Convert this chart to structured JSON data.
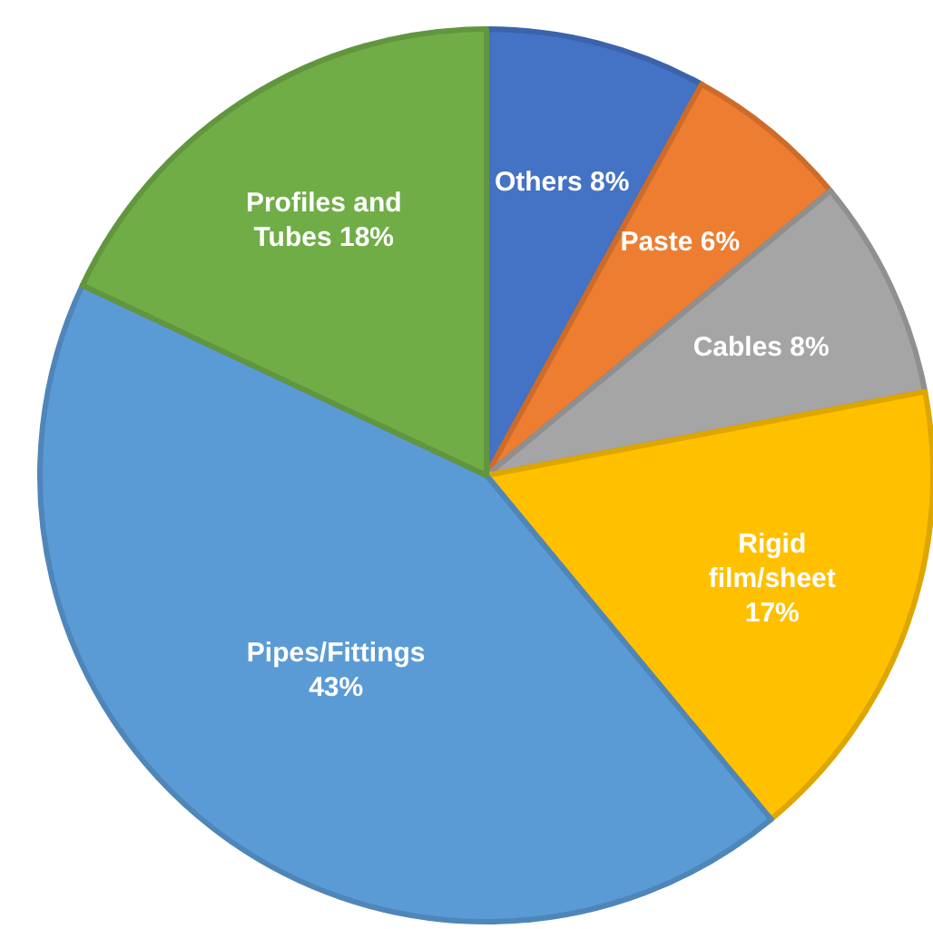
{
  "chart_data": {
    "type": "pie",
    "categories": [
      "Others",
      "Paste",
      "Cables",
      "Rigid film/sheet",
      "Pipes/Fittings",
      "Profiles and Tubes"
    ],
    "values": [
      8,
      6,
      8,
      17,
      43,
      18
    ],
    "colors": [
      "#4472c4",
      "#ed7d31",
      "#a5a5a5",
      "#ffc000",
      "#5b9bd5",
      "#70ad47"
    ],
    "value_labels": [
      "8%",
      "6%",
      "8%",
      "17%",
      "43%",
      "18%"
    ],
    "legend": false
  }
}
